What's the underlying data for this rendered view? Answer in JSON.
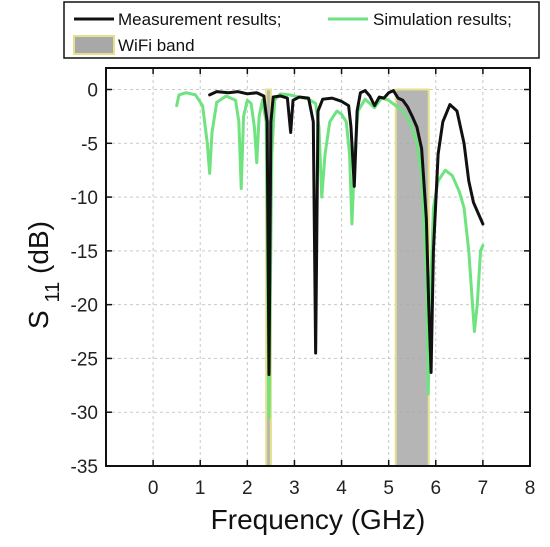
{
  "chart_data": {
    "type": "line",
    "title": "",
    "xlabel": "Frequency (GHz)",
    "ylabel": {
      "main": "S",
      "subscript": "11",
      "unit": " (dB)"
    },
    "xlim": [
      -1,
      8
    ],
    "ylim": [
      -35,
      2
    ],
    "xticks": [
      0,
      1,
      2,
      3,
      4,
      5,
      6,
      7,
      8
    ],
    "yticks": [
      0,
      -5,
      -10,
      -15,
      -20,
      -25,
      -30,
      -35
    ],
    "xtick_labels": [
      "0",
      "1",
      "2",
      "3",
      "4",
      "5",
      "6",
      "7",
      "8"
    ],
    "ytick_labels": [
      "0",
      "-5",
      "-10",
      "-15",
      "-20",
      "-25",
      "-30",
      "-35"
    ],
    "grid": true,
    "legend_position": "top",
    "legend": {
      "measurement": "Measurement results;",
      "simulation": "Simulation results;",
      "wifi": "WiFi band"
    },
    "colors": {
      "measurement": "#111111",
      "simulation": "#6fe37f",
      "wifi_fill": "#a8a8a8",
      "wifi_edge": "#e6e08a",
      "grid": "#c9c9c9"
    },
    "bands": [
      {
        "name": "WiFi band",
        "x": [
          2.4,
          2.5
        ]
      },
      {
        "name": "WiFi band",
        "x": [
          5.15,
          5.85
        ]
      }
    ],
    "series": [
      {
        "name": "Measurement results;",
        "points": [
          [
            1.2,
            -0.5
          ],
          [
            1.35,
            -0.2
          ],
          [
            1.6,
            -0.3
          ],
          [
            1.8,
            -0.2
          ],
          [
            2.0,
            -0.4
          ],
          [
            2.2,
            -0.3
          ],
          [
            2.35,
            -0.6
          ],
          [
            2.42,
            -3.0
          ],
          [
            2.46,
            -26.5
          ],
          [
            2.5,
            -3.0
          ],
          [
            2.55,
            -0.7
          ],
          [
            2.7,
            -0.6
          ],
          [
            2.85,
            -0.8
          ],
          [
            2.92,
            -4.0
          ],
          [
            2.97,
            -1.0
          ],
          [
            3.1,
            -0.7
          ],
          [
            3.3,
            -0.8
          ],
          [
            3.4,
            -3.0
          ],
          [
            3.45,
            -24.5
          ],
          [
            3.5,
            -2.0
          ],
          [
            3.6,
            -0.9
          ],
          [
            3.8,
            -0.8
          ],
          [
            4.0,
            -1.1
          ],
          [
            4.15,
            -1.5
          ],
          [
            4.2,
            -3.5
          ],
          [
            4.27,
            -9.0
          ],
          [
            4.33,
            -2.0
          ],
          [
            4.4,
            -0.3
          ],
          [
            4.5,
            -0.1
          ],
          [
            4.6,
            -0.6
          ],
          [
            4.7,
            -1.5
          ],
          [
            4.8,
            -0.7
          ],
          [
            4.9,
            -0.8
          ],
          [
            5.0,
            -0.3
          ],
          [
            5.1,
            -0.1
          ],
          [
            5.2,
            -0.8
          ],
          [
            5.3,
            -1.0
          ],
          [
            5.4,
            -1.6
          ],
          [
            5.5,
            -2.5
          ],
          [
            5.6,
            -3.5
          ],
          [
            5.7,
            -5.5
          ],
          [
            5.8,
            -12.0
          ],
          [
            5.85,
            -20.0
          ],
          [
            5.9,
            -26.3
          ],
          [
            5.95,
            -15.0
          ],
          [
            6.05,
            -6.0
          ],
          [
            6.15,
            -3.0
          ],
          [
            6.3,
            -1.4
          ],
          [
            6.45,
            -2.0
          ],
          [
            6.6,
            -5.0
          ],
          [
            6.7,
            -8.5
          ],
          [
            6.8,
            -10.5
          ],
          [
            6.9,
            -11.5
          ],
          [
            7.0,
            -12.5
          ]
        ]
      },
      {
        "name": "Simulation results;",
        "points": [
          [
            0.5,
            -1.5
          ],
          [
            0.55,
            -0.5
          ],
          [
            0.7,
            -0.3
          ],
          [
            0.9,
            -0.5
          ],
          [
            1.05,
            -1.5
          ],
          [
            1.15,
            -5.0
          ],
          [
            1.2,
            -7.8
          ],
          [
            1.25,
            -4.0
          ],
          [
            1.35,
            -1.2
          ],
          [
            1.55,
            -0.6
          ],
          [
            1.75,
            -1.0
          ],
          [
            1.82,
            -3.0
          ],
          [
            1.87,
            -9.2
          ],
          [
            1.92,
            -2.5
          ],
          [
            2.0,
            -1.0
          ],
          [
            2.08,
            -1.3
          ],
          [
            2.15,
            -3.5
          ],
          [
            2.2,
            -6.8
          ],
          [
            2.25,
            -2.5
          ],
          [
            2.32,
            -1.0
          ],
          [
            2.4,
            -3.0
          ],
          [
            2.46,
            -30.5
          ],
          [
            2.52,
            -6.0
          ],
          [
            2.58,
            -1.0
          ],
          [
            2.7,
            -0.4
          ],
          [
            2.9,
            -0.5
          ],
          [
            3.1,
            -0.7
          ],
          [
            3.3,
            -0.9
          ],
          [
            3.45,
            -1.3
          ],
          [
            3.52,
            -3.5
          ],
          [
            3.58,
            -10.0
          ],
          [
            3.65,
            -6.0
          ],
          [
            3.75,
            -3.0
          ],
          [
            3.9,
            -2.0
          ],
          [
            4.0,
            -2.3
          ],
          [
            4.1,
            -3.0
          ],
          [
            4.17,
            -6.0
          ],
          [
            4.22,
            -12.5
          ],
          [
            4.28,
            -6.0
          ],
          [
            4.35,
            -2.0
          ],
          [
            4.5,
            -0.9
          ],
          [
            4.7,
            -1.7
          ],
          [
            4.85,
            -0.8
          ],
          [
            5.0,
            -1.0
          ],
          [
            5.15,
            -1.5
          ],
          [
            5.3,
            -2.0
          ],
          [
            5.45,
            -3.0
          ],
          [
            5.6,
            -5.0
          ],
          [
            5.7,
            -8.0
          ],
          [
            5.8,
            -17.0
          ],
          [
            5.84,
            -28.3
          ],
          [
            5.88,
            -20.0
          ],
          [
            5.95,
            -11.0
          ],
          [
            6.05,
            -8.5
          ],
          [
            6.2,
            -7.5
          ],
          [
            6.35,
            -8.0
          ],
          [
            6.5,
            -9.5
          ],
          [
            6.6,
            -11.0
          ],
          [
            6.7,
            -15.0
          ],
          [
            6.78,
            -20.0
          ],
          [
            6.82,
            -22.5
          ],
          [
            6.88,
            -20.0
          ],
          [
            6.95,
            -15.0
          ],
          [
            7.0,
            -14.5
          ]
        ]
      }
    ]
  }
}
